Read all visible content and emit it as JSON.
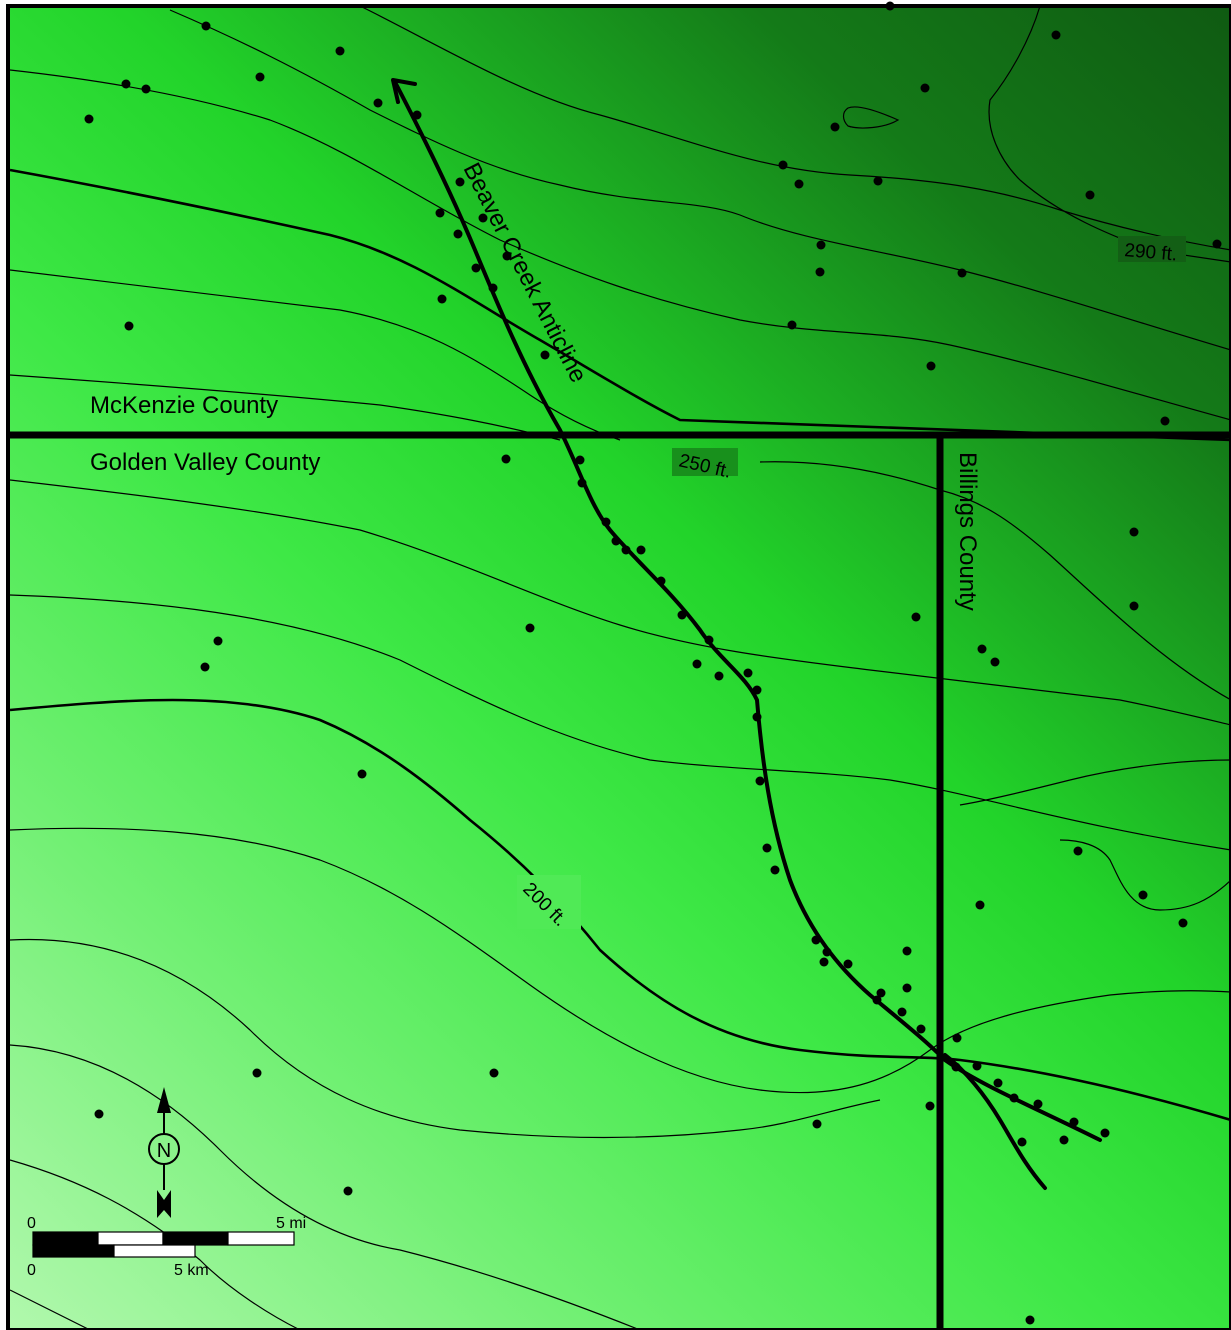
{
  "colors": {
    "ramp_top_right": "#0f5a12",
    "ramp_mid": "#22d42a",
    "ramp_bottom_left": "#b2f8ae",
    "lines": "#000000"
  },
  "counties": {
    "mckenzie": "McKenzie County",
    "golden_valley": "Golden Valley County",
    "billings": "Billings County"
  },
  "structure": {
    "name": "Beaver Creek Anticline"
  },
  "contour_labels": {
    "c290": "290 ft.",
    "c250": "250 ft.",
    "c200": "200 ft."
  },
  "north_arrow": {
    "letter": "N",
    "icon": "north-arrow-icon"
  },
  "scale_bar": {
    "mi_start": "0",
    "mi_end": "5 mi",
    "km_start": "0",
    "km_end": "5 km"
  },
  "well_count": 80
}
